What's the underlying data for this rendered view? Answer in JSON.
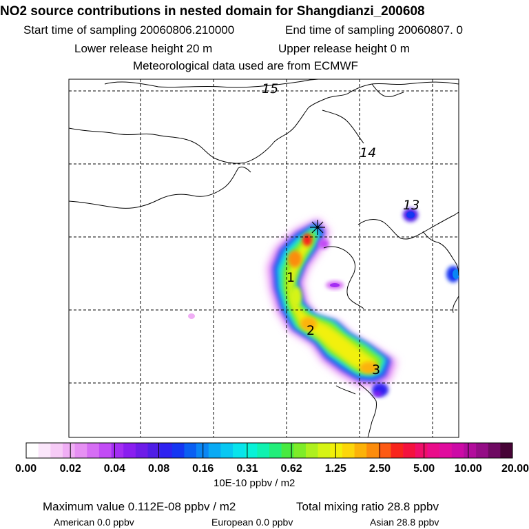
{
  "header": {
    "title": "NO2 source contributions in nested domain for Shangdianzi_200608",
    "start_sampling": "Start time of sampling 20060806.210000",
    "end_sampling": "End time of sampling 20060807.     0",
    "lower_release": "Lower release height   20 m",
    "upper_release": "Upper release height    0 m",
    "met_data": "Meteorological data used are from ECMWF"
  },
  "map": {
    "labels": [
      {
        "text": "15"
      },
      {
        "text": "14"
      },
      {
        "text": "13"
      },
      {
        "text": "1"
      },
      {
        "text": "2"
      },
      {
        "text": "3"
      }
    ],
    "receptor_marker": "asterisk"
  },
  "colorbar": {
    "tick_labels": [
      "0.00",
      "0.02",
      "0.04",
      "0.08",
      "0.16",
      "0.31",
      "0.62",
      "1.25",
      "2.50",
      "5.00",
      "10.00",
      "20.00"
    ],
    "unit": "10E-10 ppbv / m2",
    "colors": [
      "#ffffff",
      "#fbe6fb",
      "#f6cbf6",
      "#f0aef5",
      "#e690f3",
      "#d66ef4",
      "#c24cf5",
      "#a42df3",
      "#8a1ef0",
      "#6d1ce8",
      "#4f1ee6",
      "#2e22f0",
      "#1436f2",
      "#0a5ff2",
      "#0a86f4",
      "#0aaaf4",
      "#08c8f2",
      "#08e4ec",
      "#08f2d8",
      "#10f2b0",
      "#22ee7a",
      "#48ea40",
      "#7eec28",
      "#aef01e",
      "#d6f414",
      "#f2f00a",
      "#fcd60a",
      "#fcb208",
      "#fc8c0c",
      "#fc5a14",
      "#f8241c",
      "#f4123e",
      "#f00e6a",
      "#ea0c8a",
      "#e00c9e",
      "#cc0aa6",
      "#b20c9c",
      "#940c86",
      "#6e0a62",
      "#460436"
    ]
  },
  "footer": {
    "maximum": "Maximum value  0.112E-08 ppbv / m2",
    "total": "Total mixing ratio      28.8 ppbv",
    "american": "American      0.0 ppbv",
    "european": "European      0.0 ppbv",
    "asian": "Asian      28.8 ppbv"
  }
}
